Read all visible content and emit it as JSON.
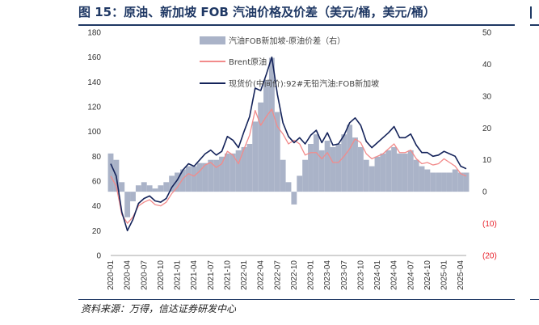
{
  "figure": {
    "title": "图 15：原油、新加坡 FOB 汽油价格及价差（美元/桶，美元/桶）",
    "source": "资料来源：万得，信达证券研发中心"
  },
  "colors": {
    "spread_fill": "#aab3c8",
    "brent": "#f28b8b",
    "gasoline": "#14235a",
    "accent": "#1f3864",
    "negative_tick": "#e8202a"
  },
  "chart_data": {
    "type": "line",
    "x": [
      "2020-01",
      "2020-02",
      "2020-03",
      "2020-04",
      "2020-05",
      "2020-06",
      "2020-07",
      "2020-08",
      "2020-09",
      "2020-10",
      "2020-11",
      "2020-12",
      "2021-01",
      "2021-02",
      "2021-03",
      "2021-04",
      "2021-05",
      "2021-06",
      "2021-07",
      "2021-08",
      "2021-09",
      "2021-10",
      "2021-11",
      "2021-12",
      "2022-01",
      "2022-02",
      "2022-03",
      "2022-04",
      "2022-05",
      "2022-06",
      "2022-07",
      "2022-08",
      "2022-09",
      "2022-10",
      "2022-11",
      "2022-12",
      "2023-01",
      "2023-02",
      "2023-03",
      "2023-04",
      "2023-05",
      "2023-06",
      "2023-07",
      "2023-08",
      "2023-09",
      "2023-10",
      "2023-11",
      "2023-12",
      "2024-01",
      "2024-02",
      "2024-03",
      "2024-04",
      "2024-05",
      "2024-06",
      "2024-07",
      "2024-08",
      "2024-09",
      "2024-10",
      "2024-11",
      "2024-12",
      "2025-01",
      "2025-02",
      "2025-03",
      "2025-04",
      "2025-05"
    ],
    "x_tick_labels": [
      "2020-01",
      "2020-04",
      "2020-07",
      "2020-10",
      "2021-01",
      "2021-04",
      "2021-07",
      "2021-10",
      "2022-01",
      "2022-04",
      "2022-07",
      "2022-10",
      "2023-01",
      "2023-04",
      "2023-07",
      "2023-10",
      "2024-01",
      "2024-04",
      "2024-07",
      "2024-10",
      "2025-01",
      "2025-04"
    ],
    "y_left": {
      "ticks": [
        0,
        20,
        40,
        60,
        80,
        100,
        120,
        140,
        160,
        180
      ],
      "ylim": [
        0,
        180
      ]
    },
    "y_right": {
      "ticks": [
        50,
        40,
        30,
        20,
        10,
        0,
        -10,
        -20
      ],
      "tick_labels": [
        "50",
        "40",
        "30",
        "20",
        "10",
        "0",
        "(10)",
        "(20)"
      ],
      "ylim": [
        -20,
        50
      ]
    },
    "legend_placement": "top-center",
    "series": [
      {
        "name": "汽油FOB新加坡-原油价差（右）",
        "axis": "right",
        "kind": "area",
        "values": [
          12,
          10,
          3,
          -8,
          -3,
          2,
          3,
          2,
          1,
          2,
          3,
          5,
          6,
          7,
          8,
          8,
          9,
          9,
          10,
          10,
          11,
          12,
          12,
          13,
          14,
          15,
          22,
          28,
          35,
          42,
          25,
          10,
          3,
          -4,
          5,
          10,
          15,
          18,
          13,
          16,
          14,
          15,
          18,
          21,
          17,
          14,
          10,
          8,
          11,
          12,
          13,
          14,
          12,
          12,
          13,
          10,
          8,
          7,
          6,
          6,
          6,
          6,
          7,
          6,
          6
        ]
      },
      {
        "name": "Brent原油",
        "axis": "left",
        "kind": "line",
        "values": [
          64,
          56,
          33,
          26,
          31,
          40,
          43,
          45,
          41,
          40,
          43,
          50,
          55,
          62,
          66,
          64,
          68,
          73,
          75,
          71,
          74,
          84,
          81,
          74,
          86,
          97,
          117,
          105,
          112,
          118,
          104,
          98,
          90,
          93,
          90,
          81,
          83,
          83,
          78,
          83,
          75,
          75,
          80,
          86,
          94,
          91,
          82,
          78,
          80,
          82,
          86,
          90,
          83,
          83,
          85,
          78,
          74,
          75,
          73,
          74,
          78,
          75,
          72,
          66,
          64
        ]
      },
      {
        "name": "现货价(中间价):92#无铅汽油:FOB新加坡",
        "axis": "left",
        "kind": "line",
        "values": [
          74,
          64,
          35,
          20,
          29,
          42,
          46,
          48,
          44,
          43,
          46,
          55,
          61,
          69,
          74,
          72,
          77,
          82,
          85,
          81,
          84,
          96,
          93,
          87,
          100,
          112,
          135,
          133,
          146,
          160,
          130,
          107,
          96,
          91,
          95,
          90,
          97,
          101,
          91,
          99,
          89,
          90,
          97,
          107,
          111,
          105,
          92,
          87,
          91,
          95,
          99,
          104,
          95,
          95,
          98,
          89,
          83,
          83,
          80,
          81,
          84,
          82,
          80,
          72,
          70
        ]
      }
    ]
  }
}
